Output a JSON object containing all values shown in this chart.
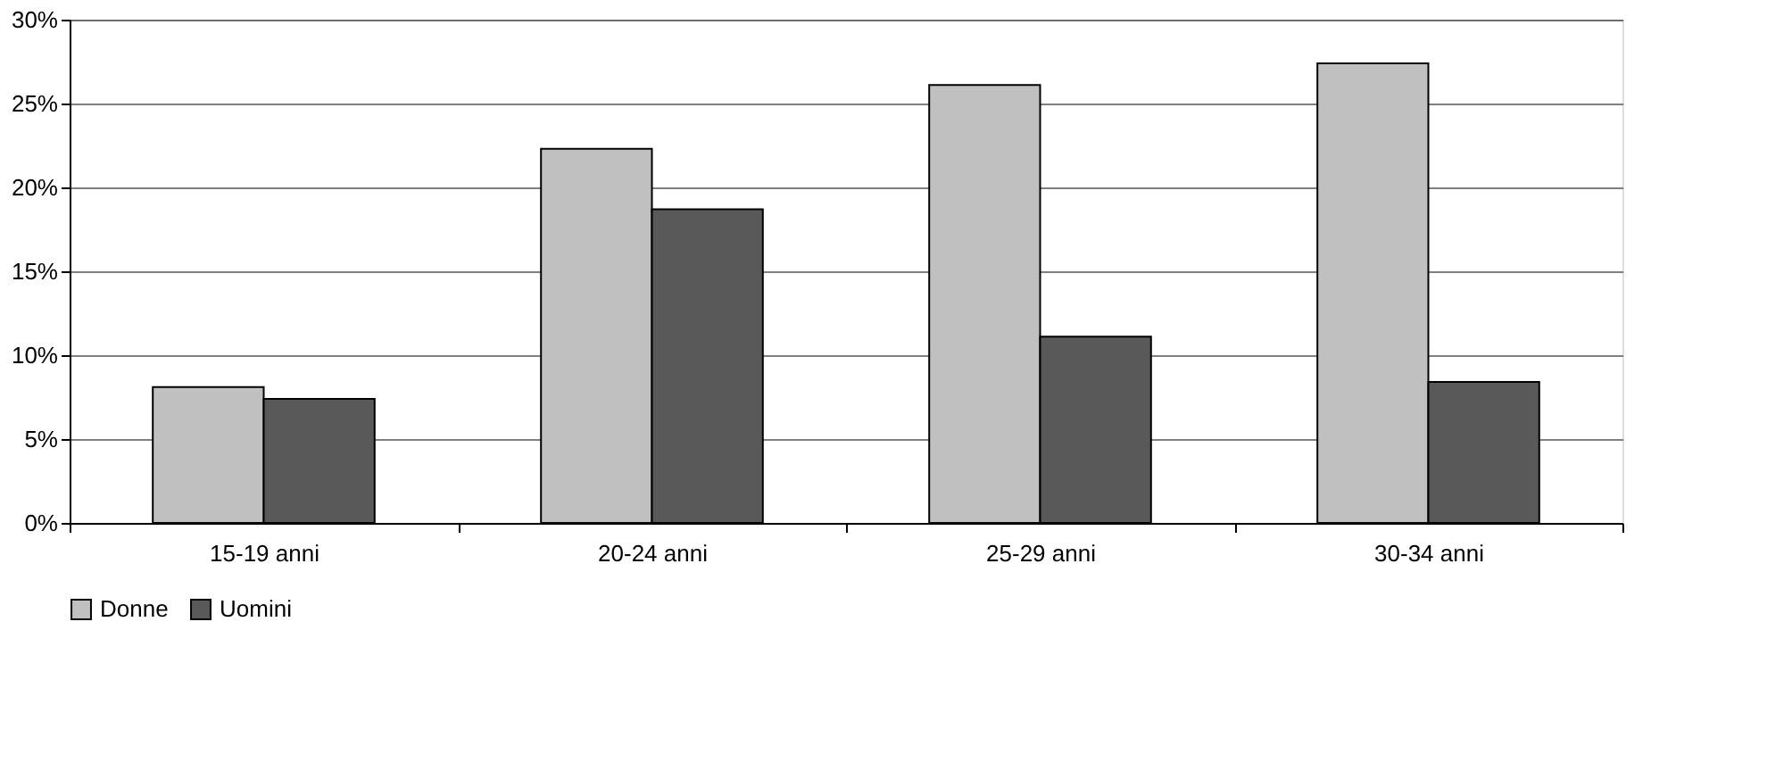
{
  "chart_data": {
    "type": "bar",
    "categories": [
      "15-19 anni",
      "20-24 anni",
      "25-29 anni",
      "30-34 anni"
    ],
    "series": [
      {
        "name": "Donne",
        "color": "#c0c0c0",
        "values": [
          8.1,
          22.3,
          26.1,
          27.4
        ]
      },
      {
        "name": "Uomini",
        "color": "#595959",
        "values": [
          7.4,
          18.7,
          11.1,
          8.4
        ]
      }
    ],
    "ylim": [
      0,
      30
    ],
    "yticks": [
      {
        "value": 0,
        "label": "0%"
      },
      {
        "value": 5,
        "label": "5%"
      },
      {
        "value": 10,
        "label": "10%"
      },
      {
        "value": 15,
        "label": "15%"
      },
      {
        "value": 20,
        "label": "20%"
      },
      {
        "value": 25,
        "label": "25%"
      },
      {
        "value": 30,
        "label": "30%"
      }
    ],
    "grid": "y",
    "legend": "bottom"
  }
}
